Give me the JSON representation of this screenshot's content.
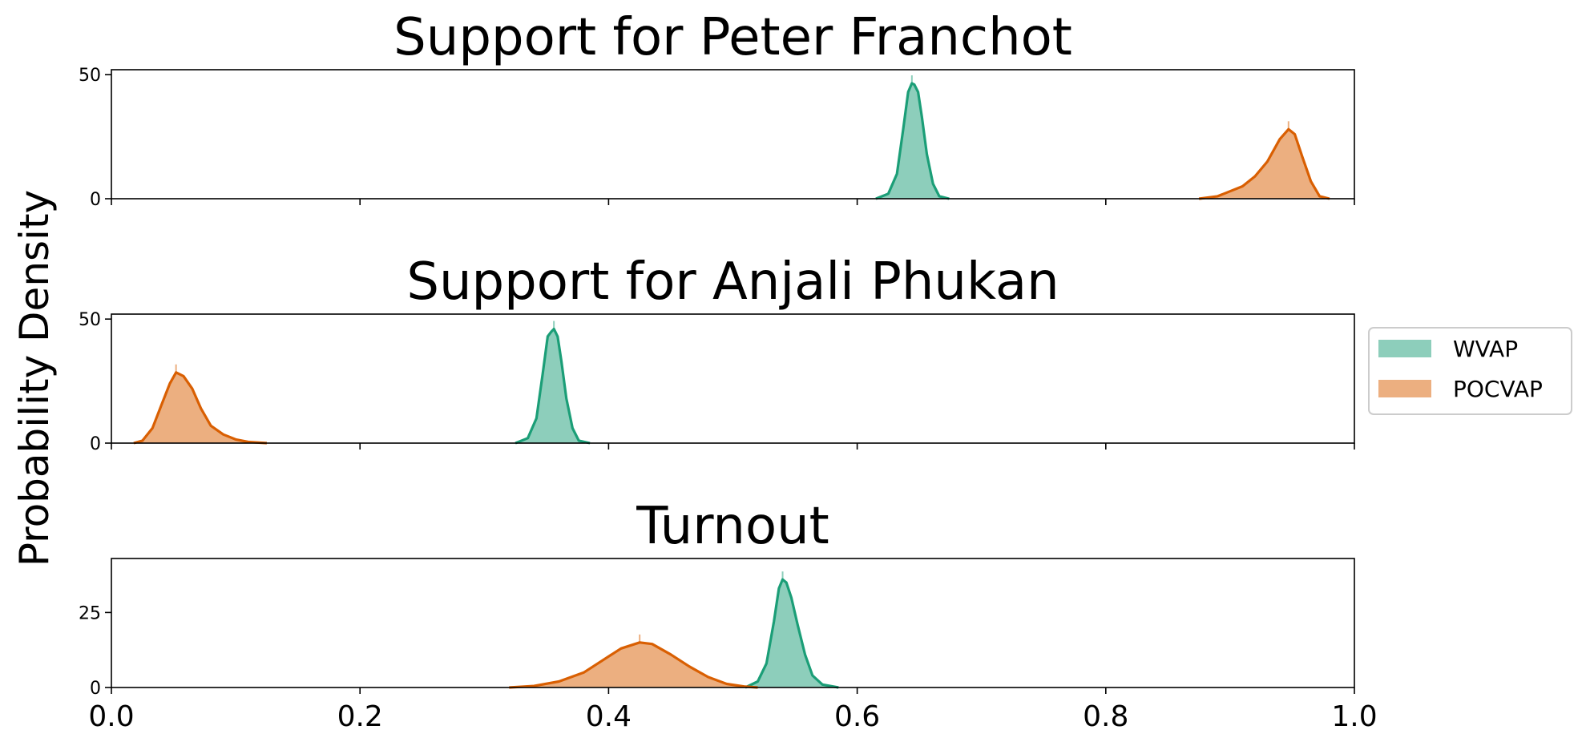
{
  "figure": {
    "ylabel": "Probability Density"
  },
  "legend": {
    "placement": "right-center",
    "entries": [
      {
        "label": "WVAP",
        "color": "#1b9e77"
      },
      {
        "label": "POCVAP",
        "color": "#d95f02"
      }
    ]
  },
  "colors": {
    "WVAP": "#1b9e77",
    "POCVAP": "#d95f02"
  },
  "chart_data": [
    {
      "type": "area",
      "title": "Support for Peter Franchot",
      "xlim": [
        0.0,
        1.0
      ],
      "ylim": [
        0,
        52
      ],
      "yticks": [
        "0",
        "50"
      ],
      "ytick_values": [
        0,
        50
      ],
      "xticks": [
        "0.0",
        "0.2",
        "0.4",
        "0.6",
        "0.8",
        "1.0"
      ],
      "xtick_values": [
        0.0,
        0.2,
        0.4,
        0.6,
        0.8,
        1.0
      ],
      "show_xtick_labels": false,
      "series": [
        {
          "name": "WVAP",
          "x": [
            0.615,
            0.625,
            0.632,
            0.637,
            0.641,
            0.644,
            0.646,
            0.649,
            0.652,
            0.656,
            0.661,
            0.666,
            0.674
          ],
          "y": [
            0,
            2,
            10,
            28,
            43,
            46.5,
            46,
            43,
            33,
            18,
            6,
            1,
            0
          ]
        },
        {
          "name": "POCVAP",
          "x": [
            0.875,
            0.89,
            0.9,
            0.91,
            0.92,
            0.93,
            0.94,
            0.947,
            0.952,
            0.958,
            0.965,
            0.972,
            0.98
          ],
          "y": [
            0,
            1,
            3,
            5,
            9,
            15,
            24,
            28,
            26,
            17,
            7,
            1,
            0
          ]
        }
      ]
    },
    {
      "type": "area",
      "title": "Support for Anjali Phukan",
      "xlim": [
        0.0,
        1.0
      ],
      "ylim": [
        0,
        52
      ],
      "yticks": [
        "0",
        "50"
      ],
      "ytick_values": [
        0,
        50
      ],
      "xticks": [
        "0.0",
        "0.2",
        "0.4",
        "0.6",
        "0.8",
        "1.0"
      ],
      "xtick_values": [
        0.0,
        0.2,
        0.4,
        0.6,
        0.8,
        1.0
      ],
      "show_xtick_labels": false,
      "series": [
        {
          "name": "WVAP",
          "x": [
            0.325,
            0.335,
            0.342,
            0.347,
            0.351,
            0.354,
            0.356,
            0.359,
            0.362,
            0.366,
            0.371,
            0.376,
            0.385
          ],
          "y": [
            0,
            2,
            10,
            28,
            43,
            45,
            46,
            43,
            33,
            18,
            6,
            1,
            0
          ]
        },
        {
          "name": "POCVAP",
          "x": [
            0.018,
            0.025,
            0.033,
            0.04,
            0.047,
            0.052,
            0.058,
            0.065,
            0.072,
            0.08,
            0.09,
            0.1,
            0.11,
            0.125
          ],
          "y": [
            0,
            1,
            6,
            15,
            24,
            28.5,
            27,
            22,
            14,
            7,
            3.5,
            1.5,
            0.5,
            0
          ]
        }
      ]
    },
    {
      "type": "area",
      "title": "Turnout",
      "xlim": [
        0.0,
        1.0
      ],
      "ylim": [
        0,
        43
      ],
      "yticks": [
        "0",
        "25"
      ],
      "ytick_values": [
        0,
        25
      ],
      "xticks": [
        "0.0",
        "0.2",
        "0.4",
        "0.6",
        "0.8",
        "1.0"
      ],
      "xtick_values": [
        0.0,
        0.2,
        0.4,
        0.6,
        0.8,
        1.0
      ],
      "show_xtick_labels": true,
      "series": [
        {
          "name": "WVAP",
          "x": [
            0.51,
            0.52,
            0.527,
            0.533,
            0.537,
            0.54,
            0.543,
            0.547,
            0.552,
            0.558,
            0.564,
            0.572,
            0.585
          ],
          "y": [
            0,
            2,
            8,
            22,
            33,
            36,
            35,
            30,
            21,
            11,
            4,
            1,
            0
          ]
        },
        {
          "name": "POCVAP",
          "x": [
            0.32,
            0.34,
            0.36,
            0.38,
            0.395,
            0.41,
            0.425,
            0.435,
            0.45,
            0.465,
            0.48,
            0.495,
            0.51,
            0.52
          ],
          "y": [
            0,
            0.5,
            2,
            5,
            9,
            13,
            15,
            14.5,
            11,
            7,
            3.5,
            1.2,
            0.3,
            0
          ]
        }
      ]
    }
  ]
}
